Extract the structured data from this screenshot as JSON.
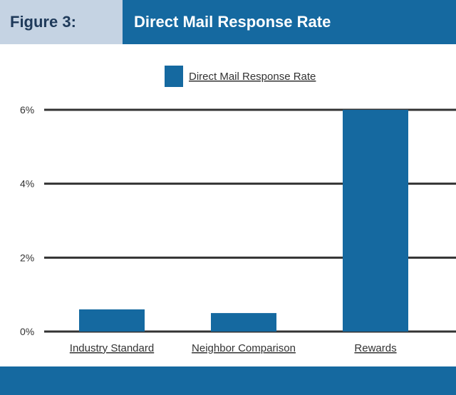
{
  "header": {
    "figure_label": "Figure 3:",
    "title": "Direct Mail Response Rate"
  },
  "colors": {
    "bar": "#1569a0",
    "header_label_bg": "#c5d3e3",
    "header_title_bg": "#1569a0"
  },
  "chart_data": {
    "type": "bar",
    "title": "Direct Mail Response Rate",
    "categories": [
      "Industry Standard",
      "Neighbor Comparison",
      "Rewards"
    ],
    "series": [
      {
        "name": "Direct Mail Response Rate",
        "values": [
          0.6,
          0.5,
          6.0
        ]
      }
    ],
    "yticks": [
      "0%",
      "2%",
      "4%",
      "6%"
    ],
    "ylim": [
      0,
      6
    ],
    "grid": true,
    "legend": "top-center"
  }
}
